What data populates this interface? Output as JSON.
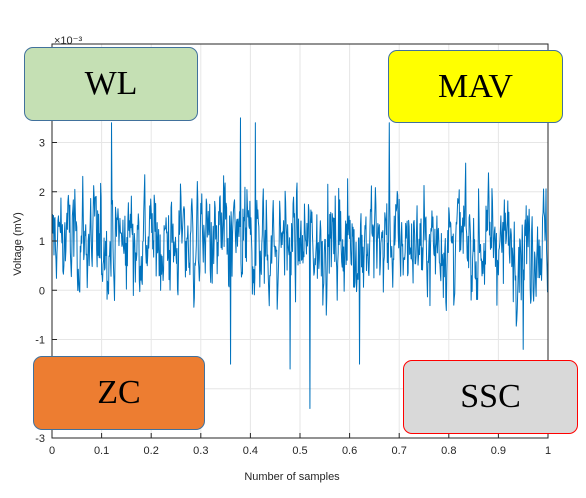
{
  "chart_data": {
    "type": "line",
    "title": "",
    "xlabel": "Number of samples",
    "ylabel": "Voltage (mV)",
    "y_exponent_label": "×10⁻³",
    "xlim": [
      0,
      1
    ],
    "ylim": [
      -3,
      5
    ],
    "xticks": [
      "0",
      "0.1",
      "0.2",
      "0.3",
      "0.4",
      "0.5",
      "0.6",
      "0.7",
      "0.8",
      "0.9",
      "1"
    ],
    "yticks": [
      "-3",
      "-2",
      "-1",
      "0",
      "1",
      "2",
      "3"
    ],
    "grid": true,
    "line_color": "#0072BD",
    "series": [
      {
        "description_points_count": 1000,
        "mean": 1.0,
        "peak_max": 3.5,
        "peak_min": -2.4,
        "notable_points": [
          {
            "x": 0.12,
            "y": 3.4
          },
          {
            "x": 0.38,
            "y": 3.5
          },
          {
            "x": 0.41,
            "y": 3.4
          },
          {
            "x": 0.52,
            "y": -2.4
          },
          {
            "x": 0.48,
            "y": -1.6
          },
          {
            "x": 0.36,
            "y": -1.5
          },
          {
            "x": 0.62,
            "y": -1.5
          },
          {
            "x": 0.68,
            "y": 3.4
          },
          {
            "x": 0.95,
            "y": -1.2
          }
        ]
      }
    ]
  },
  "labels": {
    "wl": {
      "text": "WL",
      "fill": "#C5E0B4",
      "border": "#41719C"
    },
    "mav": {
      "text": "MAV",
      "fill": "#FFFF00",
      "border": "#41719C"
    },
    "zc": {
      "text": "ZC",
      "fill": "#ED7D31",
      "border": "#41719C"
    },
    "ssc": {
      "text": "SSC",
      "fill": "#D9D9D9",
      "border": "#FF0000"
    }
  }
}
